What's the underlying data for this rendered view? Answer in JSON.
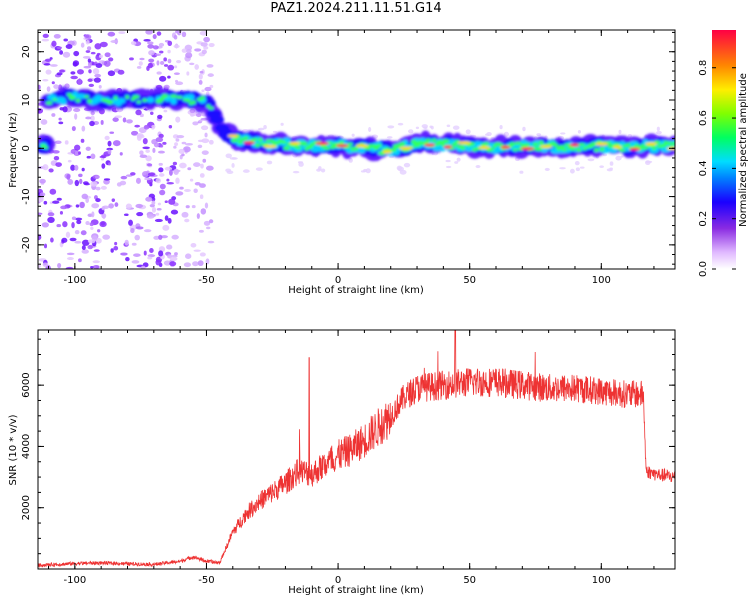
{
  "figure": {
    "title": "PAZ1.2024.211.11.51.G14"
  },
  "chart_data": [
    {
      "type": "heatmap",
      "title": "PAZ1.2024.211.11.51.G14",
      "xlabel": "Height of straight line (km)",
      "ylabel": "Frequency (Hz)",
      "xlim": [
        -114,
        128
      ],
      "ylim": [
        -25,
        24.5
      ],
      "xticks": [
        -100,
        -50,
        0,
        50,
        100
      ],
      "yticks": [
        -20,
        -10,
        0,
        10,
        20
      ],
      "colorbar": {
        "label": "Normalized spectral amplitude",
        "range": [
          0,
          0.95
        ],
        "ticks": [
          0.0,
          0.2,
          0.4,
          0.6,
          0.8
        ],
        "colormap": [
          "#ffffff",
          "#e8c8ff",
          "#9040ff",
          "#2000ff",
          "#00c8ff",
          "#00ff40",
          "#f0ff00",
          "#ff9000",
          "#ff0040"
        ]
      },
      "ridge": [
        {
          "x": -110,
          "y": 10
        },
        {
          "x": -100,
          "y": 10.5
        },
        {
          "x": -90,
          "y": 10
        },
        {
          "x": -80,
          "y": 10.2
        },
        {
          "x": -70,
          "y": 10
        },
        {
          "x": -60,
          "y": 10.3
        },
        {
          "x": -50,
          "y": 9.5
        },
        {
          "x": -45,
          "y": 5
        },
        {
          "x": -40,
          "y": 2
        },
        {
          "x": -30,
          "y": 1
        },
        {
          "x": -20,
          "y": 0.8
        },
        {
          "x": -10,
          "y": 0.5
        },
        {
          "x": 0,
          "y": 0.5
        },
        {
          "x": 10,
          "y": 0.3
        },
        {
          "x": 20,
          "y": -0.5
        },
        {
          "x": 30,
          "y": 1
        },
        {
          "x": 40,
          "y": 0.8
        },
        {
          "x": 50,
          "y": 0.5
        },
        {
          "x": 60,
          "y": 0.2
        },
        {
          "x": 70,
          "y": 0.5
        },
        {
          "x": 80,
          "y": 0.3
        },
        {
          "x": 90,
          "y": 0.2
        },
        {
          "x": 100,
          "y": 0.5
        },
        {
          "x": 110,
          "y": 0.3
        },
        {
          "x": 120,
          "y": 0.4
        },
        {
          "x": 128,
          "y": 0.5
        }
      ]
    },
    {
      "type": "line",
      "xlabel": "Height of straight line (km)",
      "ylabel": "SNR (10 * v/v)",
      "xlim": [
        -114,
        128
      ],
      "ylim": [
        0,
        7800
      ],
      "xticks": [
        -100,
        -50,
        0,
        50,
        100
      ],
      "yticks": [
        2000,
        4000,
        6000
      ],
      "color": "#ee3333",
      "series": [
        {
          "values": [
            {
              "x": -114,
              "y": 120
            },
            {
              "x": -100,
              "y": 180
            },
            {
              "x": -90,
              "y": 200
            },
            {
              "x": -80,
              "y": 170
            },
            {
              "x": -70,
              "y": 150
            },
            {
              "x": -60,
              "y": 250
            },
            {
              "x": -55,
              "y": 400
            },
            {
              "x": -50,
              "y": 250
            },
            {
              "x": -45,
              "y": 200
            },
            {
              "x": -40,
              "y": 1200
            },
            {
              "x": -35,
              "y": 1800
            },
            {
              "x": -30,
              "y": 2200
            },
            {
              "x": -25,
              "y": 2500
            },
            {
              "x": -20,
              "y": 2800
            },
            {
              "x": -15,
              "y": 3200
            },
            {
              "x": -10,
              "y": 3100
            },
            {
              "x": -5,
              "y": 3400
            },
            {
              "x": 0,
              "y": 3700
            },
            {
              "x": 5,
              "y": 3900
            },
            {
              "x": 10,
              "y": 4200
            },
            {
              "x": 15,
              "y": 4600
            },
            {
              "x": 20,
              "y": 5000
            },
            {
              "x": 25,
              "y": 5600
            },
            {
              "x": 30,
              "y": 5900
            },
            {
              "x": 40,
              "y": 6000
            },
            {
              "x": 50,
              "y": 6100
            },
            {
              "x": 60,
              "y": 6100
            },
            {
              "x": 70,
              "y": 6000
            },
            {
              "x": 80,
              "y": 5900
            },
            {
              "x": 90,
              "y": 5900
            },
            {
              "x": 100,
              "y": 5800
            },
            {
              "x": 110,
              "y": 5700
            },
            {
              "x": 116,
              "y": 5700
            },
            {
              "x": 117,
              "y": 3200
            },
            {
              "x": 120,
              "y": 3100
            },
            {
              "x": 128,
              "y": 3000
            }
          ]
        }
      ]
    }
  ]
}
